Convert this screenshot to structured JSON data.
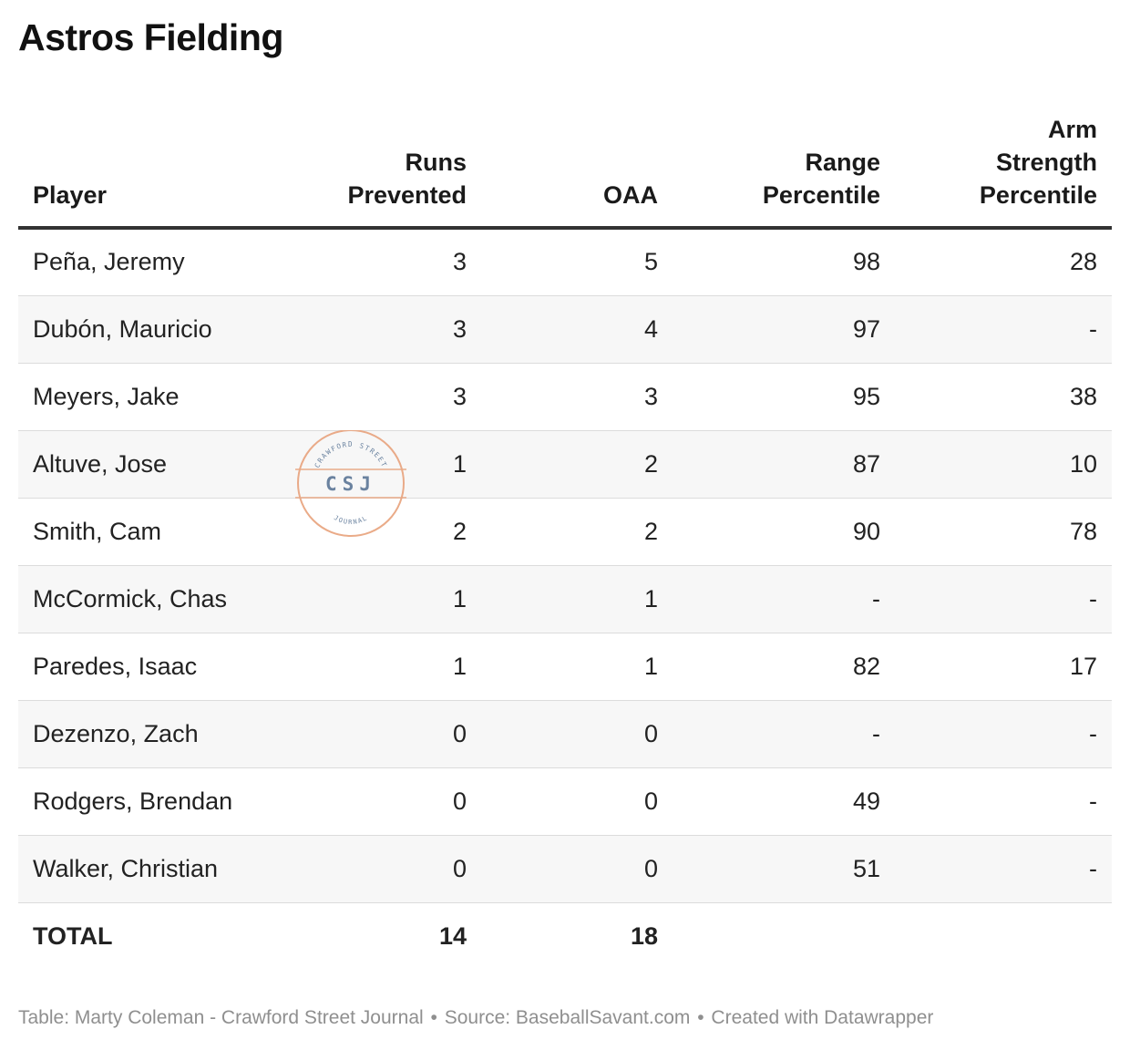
{
  "title": "Astros Fielding",
  "columns": {
    "player": "Player",
    "runs_line1": "Runs",
    "runs_line2": "Prevented",
    "oaa": "OAA",
    "range_line1": "Range",
    "range_line2": "Percentile",
    "arm_line1": "Arm",
    "arm_line2": "Strength",
    "arm_line3": "Percentile"
  },
  "chart_data": {
    "type": "table",
    "title": "Astros Fielding",
    "columns": [
      "Player",
      "Runs Prevented",
      "OAA",
      "Range Percentile",
      "Arm Strength Percentile"
    ],
    "rows": [
      {
        "player": "Peña, Jeremy",
        "runs": "3",
        "oaa": "5",
        "range": "98",
        "arm": "28"
      },
      {
        "player": "Dubón, Mauricio",
        "runs": "3",
        "oaa": "4",
        "range": "97",
        "arm": "-"
      },
      {
        "player": "Meyers, Jake",
        "runs": "3",
        "oaa": "3",
        "range": "95",
        "arm": "38"
      },
      {
        "player": "Altuve, Jose",
        "runs": "1",
        "oaa": "2",
        "range": "87",
        "arm": "10"
      },
      {
        "player": "Smith, Cam",
        "runs": "2",
        "oaa": "2",
        "range": "90",
        "arm": "78"
      },
      {
        "player": "McCormick, Chas",
        "runs": "1",
        "oaa": "1",
        "range": "-",
        "arm": "-"
      },
      {
        "player": "Paredes, Isaac",
        "runs": "1",
        "oaa": "1",
        "range": "82",
        "arm": "17"
      },
      {
        "player": "Dezenzo, Zach",
        "runs": "0",
        "oaa": "0",
        "range": "-",
        "arm": "-"
      },
      {
        "player": "Rodgers, Brendan",
        "runs": "0",
        "oaa": "0",
        "range": "49",
        "arm": "-"
      },
      {
        "player": "Walker, Christian",
        "runs": "0",
        "oaa": "0",
        "range": "51",
        "arm": "-"
      }
    ],
    "total": {
      "label": "TOTAL",
      "runs": "14",
      "oaa": "18"
    }
  },
  "watermark": {
    "top_text": "CRAWFORD STREET",
    "center_text": "CSJ",
    "bottom_text": "JOURNAL",
    "color": "#e8a27c",
    "text_color": "#5b7696"
  },
  "footer": {
    "table_credit": "Table: Marty Coleman - Crawford Street Journal",
    "separator": "•",
    "source": "Source: BaseballSavant.com",
    "created": "Created with Datawrapper"
  },
  "colors": {
    "title": "#111111",
    "header_rule": "#333333",
    "row_stripe": "#f7f7f7",
    "row_divider": "#dcdcdc",
    "footer_text": "#8f8f8f"
  }
}
